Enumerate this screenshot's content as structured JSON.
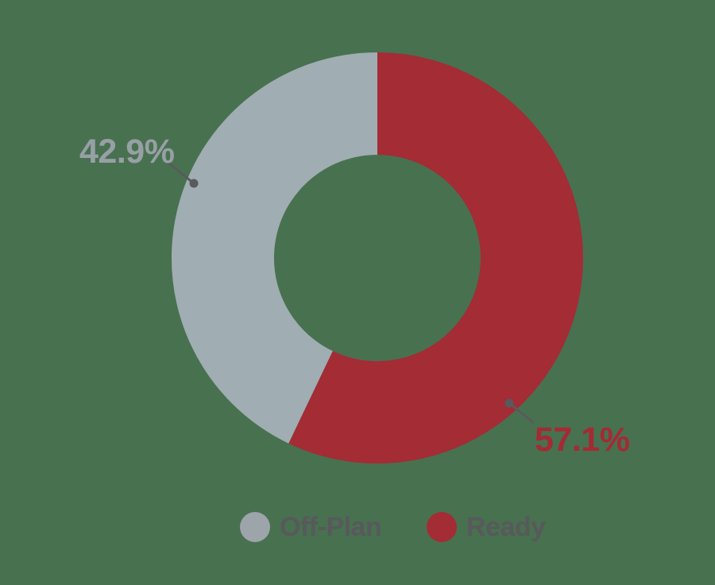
{
  "chart_data": {
    "type": "pie",
    "subtype": "donut",
    "title": "",
    "hole_ratio": 0.5,
    "categories": [
      "Off-Plan",
      "Ready"
    ],
    "values": [
      42.9,
      57.1
    ],
    "value_unit": "percent",
    "slice_colors": [
      "#A0ADB2",
      "#A32C35"
    ],
    "data_labels": [
      "42.9%",
      "57.1%"
    ],
    "start_angle_deg": 0,
    "direction": "counterclockwise",
    "legend_position": "bottom"
  },
  "labels": {
    "offplan_pct": "42.9%",
    "ready_pct": "57.1%"
  },
  "legend": {
    "items": [
      {
        "label": "Off-Plan",
        "color": "#9DA4AA"
      },
      {
        "label": "Ready",
        "color": "#A32C35"
      }
    ]
  },
  "colors": {
    "background": "#487150",
    "slice_offplan": "#A0ADB2",
    "slice_ready": "#A32C35",
    "pct_label_offplan": "#97A0A5",
    "pct_label_ready": "#A42A34",
    "legend_text": "#58595B",
    "leader_line": "#595A5C",
    "leader_dot": "#595A5C"
  }
}
